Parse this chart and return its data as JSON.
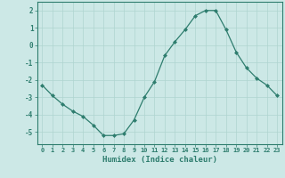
{
  "x": [
    0,
    1,
    2,
    3,
    4,
    5,
    6,
    7,
    8,
    9,
    10,
    11,
    12,
    13,
    14,
    15,
    16,
    17,
    18,
    19,
    20,
    21,
    22,
    23
  ],
  "y": [
    -2.3,
    -2.9,
    -3.4,
    -3.8,
    -4.1,
    -4.6,
    -5.2,
    -5.2,
    -5.1,
    -4.3,
    -3.0,
    -2.1,
    -0.6,
    0.2,
    0.9,
    1.7,
    2.0,
    2.0,
    0.9,
    -0.4,
    -1.3,
    -1.9,
    -2.3,
    -2.9
  ],
  "xlabel": "Humidex (Indice chaleur)",
  "xlim": [
    -0.5,
    23.5
  ],
  "ylim": [
    -5.7,
    2.5
  ],
  "yticks": [
    -5,
    -4,
    -3,
    -2,
    -1,
    0,
    1,
    2
  ],
  "xticks": [
    0,
    1,
    2,
    3,
    4,
    5,
    6,
    7,
    8,
    9,
    10,
    11,
    12,
    13,
    14,
    15,
    16,
    17,
    18,
    19,
    20,
    21,
    22,
    23
  ],
  "line_color": "#2e7d6e",
  "marker_color": "#2e7d6e",
  "bg_color": "#cce8e6",
  "grid_color": "#afd4d0",
  "axis_color": "#2e7d6e",
  "label_color": "#2e7d6e",
  "tick_color": "#2e7d6e"
}
